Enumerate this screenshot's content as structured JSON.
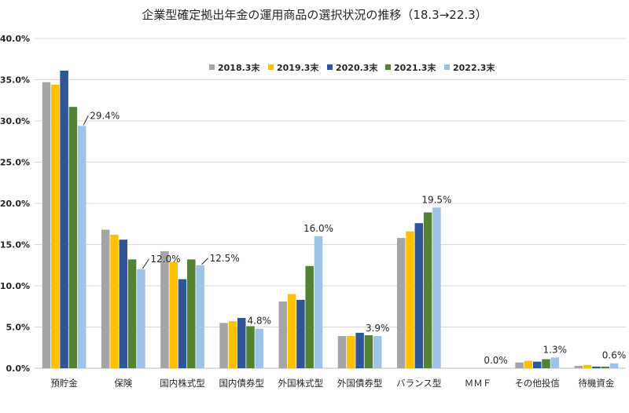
{
  "chart_data": {
    "type": "bar",
    "title": "企業型確定拠出年金の運用商品の選択状況の推移（18.3→22.3）",
    "categories": [
      "預貯金",
      "保険",
      "国内株式型",
      "国内債券型",
      "外国株式型",
      "外国債券型",
      "バランス型",
      "ＭＭＦ",
      "その他投信",
      "待機資金"
    ],
    "y_ticks": [
      "0.0%",
      "5.0%",
      "10.0%",
      "15.0%",
      "20.0%",
      "25.0%",
      "30.0%",
      "35.0%",
      "40.0%"
    ],
    "ylim": [
      0,
      40
    ],
    "y_unit": "%",
    "grid": true,
    "legend_position": "top",
    "series": [
      {
        "name": "2018.3末",
        "color": "#a5a5a5",
        "values": [
          34.7,
          16.8,
          14.2,
          5.5,
          8.1,
          3.9,
          15.8,
          0.0,
          0.7,
          0.3
        ]
      },
      {
        "name": "2019.3末",
        "color": "#ffc000",
        "values": [
          34.4,
          16.2,
          12.9,
          5.7,
          9.0,
          3.9,
          16.6,
          0.0,
          0.9,
          0.4
        ]
      },
      {
        "name": "2020.3末",
        "color": "#2f5597",
        "values": [
          36.1,
          15.6,
          10.8,
          6.1,
          8.3,
          4.3,
          17.6,
          0.0,
          0.8,
          0.2
        ]
      },
      {
        "name": "2021.3末",
        "color": "#548235",
        "values": [
          31.7,
          13.2,
          13.2,
          5.1,
          12.4,
          4.0,
          18.9,
          0.0,
          1.1,
          0.2
        ]
      },
      {
        "name": "2022.3末",
        "color": "#9dc3e6",
        "values": [
          29.4,
          12.0,
          12.5,
          4.8,
          16.0,
          3.9,
          19.5,
          0.0,
          1.3,
          0.6
        ]
      }
    ],
    "data_labels": [
      "29.4%",
      "12.0%",
      "12.5%",
      "4.8%",
      "16.0%",
      "3.9%",
      "19.5%",
      "0.0%",
      "1.3%",
      "0.6%"
    ]
  }
}
